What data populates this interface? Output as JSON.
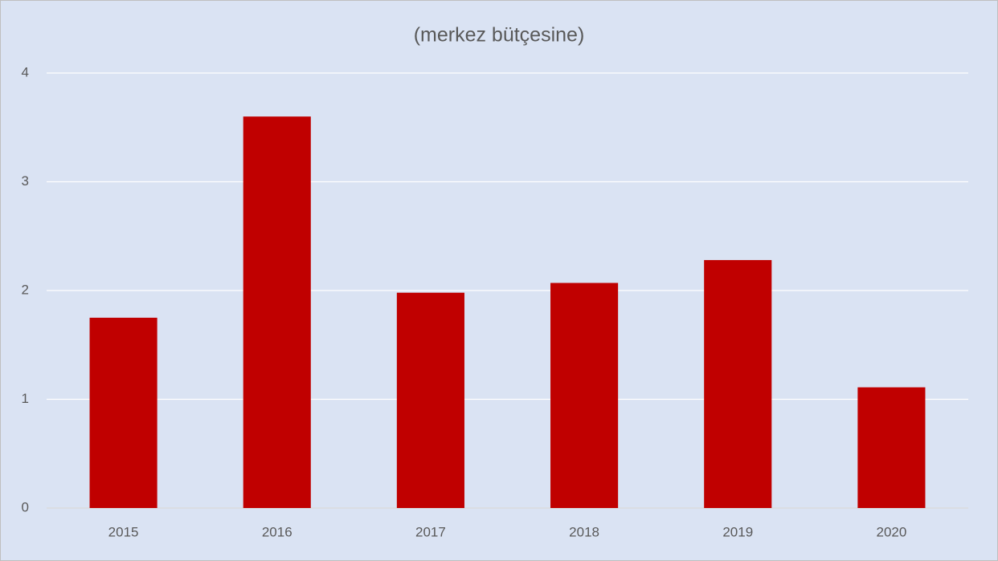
{
  "chart_data": {
    "type": "bar",
    "title": "(merkez bütçesine)",
    "categories": [
      "2015",
      "2016",
      "2017",
      "2018",
      "2019",
      "2020"
    ],
    "values": [
      1.75,
      3.6,
      1.98,
      2.07,
      2.28,
      1.11
    ],
    "color": "#c00000",
    "ylim": [
      0,
      4
    ],
    "yticks": [
      0,
      1,
      2,
      3,
      4
    ],
    "grid": true
  }
}
